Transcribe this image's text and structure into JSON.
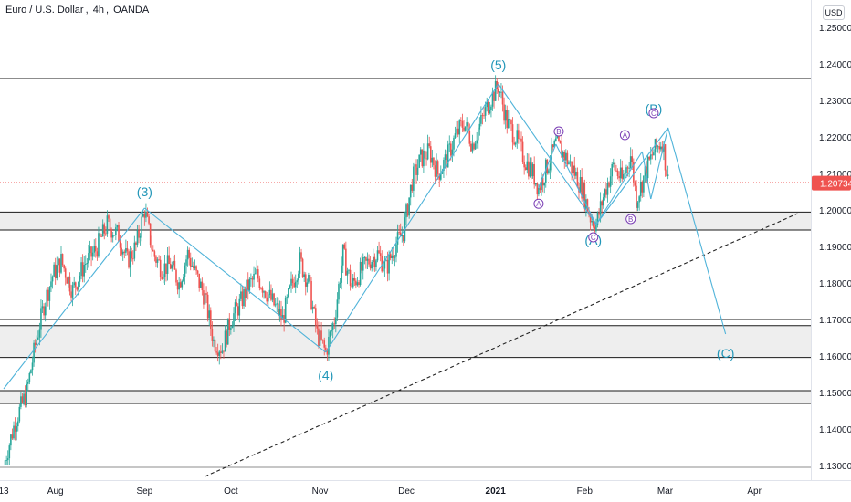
{
  "header": {
    "symbol": "Euro / U.S. Dollar",
    "interval": "4h",
    "exchange": "OANDA",
    "currency": "USD"
  },
  "colors": {
    "up": "#26a69a",
    "down": "#ef5350",
    "wave": "#4fb3d9",
    "label": "#2196b8",
    "zone": "#e0e0e0",
    "circle_label": "#7b3fb5",
    "price_tag": "#ef5350"
  },
  "chart_data": {
    "type": "candlestick",
    "y_axis": {
      "min": 1.125,
      "max": 1.255,
      "ticks": [
        "1.13000",
        "1.14000",
        "1.15000",
        "1.16000",
        "1.17000",
        "1.18000",
        "1.19000",
        "1.20000",
        "1.21000",
        "1.22000",
        "1.23000",
        "1.24000",
        "1.25000"
      ]
    },
    "x_axis": {
      "ticks": [
        {
          "label": "13",
          "pos": 0
        },
        {
          "label": "Aug",
          "pos": 18
        },
        {
          "label": "Sep",
          "pos": 49
        },
        {
          "label": "Oct",
          "pos": 79
        },
        {
          "label": "Nov",
          "pos": 110
        },
        {
          "label": "Dec",
          "pos": 140
        },
        {
          "label": "2021",
          "pos": 171
        },
        {
          "label": "Feb",
          "pos": 202
        },
        {
          "label": "Mar",
          "pos": 230
        },
        {
          "label": "Apr",
          "pos": 261
        }
      ]
    },
    "last_price": "1.20734",
    "price_path": [
      [
        0,
        1.13
      ],
      [
        4,
        1.142
      ],
      [
        8,
        1.15
      ],
      [
        11,
        1.163
      ],
      [
        14,
        1.174
      ],
      [
        17,
        1.182
      ],
      [
        20,
        1.186
      ],
      [
        24,
        1.178
      ],
      [
        28,
        1.185
      ],
      [
        32,
        1.189
      ],
      [
        36,
        1.196
      ],
      [
        40,
        1.193
      ],
      [
        43,
        1.186
      ],
      [
        46,
        1.19
      ],
      [
        49,
        1.2
      ],
      [
        52,
        1.188
      ],
      [
        55,
        1.184
      ],
      [
        58,
        1.185
      ],
      [
        61,
        1.18
      ],
      [
        64,
        1.188
      ],
      [
        67,
        1.182
      ],
      [
        70,
        1.176
      ],
      [
        73,
        1.164
      ],
      [
        76,
        1.162
      ],
      [
        79,
        1.17
      ],
      [
        82,
        1.174
      ],
      [
        85,
        1.179
      ],
      [
        88,
        1.182
      ],
      [
        91,
        1.178
      ],
      [
        94,
        1.174
      ],
      [
        97,
        1.17
      ],
      [
        100,
        1.179
      ],
      [
        103,
        1.186
      ],
      [
        106,
        1.18
      ],
      [
        109,
        1.166
      ],
      [
        112,
        1.161
      ],
      [
        115,
        1.17
      ],
      [
        118,
        1.188
      ],
      [
        121,
        1.179
      ],
      [
        124,
        1.183
      ],
      [
        127,
        1.186
      ],
      [
        130,
        1.188
      ],
      [
        133,
        1.184
      ],
      [
        136,
        1.19
      ],
      [
        139,
        1.194
      ],
      [
        142,
        1.208
      ],
      [
        145,
        1.214
      ],
      [
        148,
        1.216
      ],
      [
        151,
        1.21
      ],
      [
        154,
        1.214
      ],
      [
        157,
        1.22
      ],
      [
        160,
        1.224
      ],
      [
        163,
        1.218
      ],
      [
        166,
        1.224
      ],
      [
        169,
        1.23
      ],
      [
        172,
        1.234
      ],
      [
        175,
        1.224
      ],
      [
        178,
        1.22
      ],
      [
        181,
        1.214
      ],
      [
        184,
        1.21
      ],
      [
        186,
        1.206
      ],
      [
        189,
        1.212
      ],
      [
        192,
        1.218
      ],
      [
        195,
        1.215
      ],
      [
        198,
        1.211
      ],
      [
        201,
        1.206
      ],
      [
        204,
        1.198
      ],
      [
        206,
        1.196
      ],
      [
        209,
        1.205
      ],
      [
        212,
        1.212
      ],
      [
        215,
        1.208
      ],
      [
        218,
        1.215
      ],
      [
        220,
        1.203
      ],
      [
        223,
        1.21
      ],
      [
        226,
        1.216
      ],
      [
        229,
        1.219
      ],
      [
        231,
        1.208
      ]
    ],
    "horizontal_lines": [
      1.2359,
      1.1994,
      1.1945,
      1.17,
      1.1683,
      1.1596,
      1.1505,
      1.147,
      1.1295
    ],
    "dotted_level": 1.2075,
    "zones": [
      [
        1.1945,
        1.1994
      ],
      [
        1.1596,
        1.1683
      ],
      [
        1.147,
        1.1505
      ]
    ],
    "wave_lines": [
      [
        [
          0,
          1.151
        ],
        [
          49,
          1.2005
        ]
      ],
      [
        [
          49,
          1.2005
        ],
        [
          112,
          1.161
        ]
      ],
      [
        [
          112,
          1.161
        ],
        [
          172,
          1.2345
        ]
      ],
      [
        [
          172,
          1.2345
        ],
        [
          206,
          1.196
        ]
      ],
      [
        [
          206,
          1.196
        ],
        [
          231,
          1.2225
        ]
      ],
      [
        [
          231,
          1.2225
        ],
        [
          251,
          1.166
        ]
      ],
      [
        [
          186,
          1.206
        ],
        [
          192,
          1.218
        ]
      ],
      [
        [
          192,
          1.218
        ],
        [
          206,
          1.196
        ]
      ],
      [
        [
          206,
          1.196
        ],
        [
          222,
          1.216
        ]
      ],
      [
        [
          222,
          1.216
        ],
        [
          225,
          1.203
        ]
      ],
      [
        [
          225,
          1.203
        ],
        [
          231,
          1.2225
        ]
      ]
    ],
    "trendline": [
      [
        70,
        1.127
      ],
      [
        276,
        1.199
      ]
    ],
    "wave_labels": [
      {
        "text": "(3)",
        "x": 49,
        "y": 1.2038
      },
      {
        "text": "(4)",
        "x": 112,
        "y": 1.1535
      },
      {
        "text": "(5)",
        "x": 172,
        "y": 1.2385
      },
      {
        "text": "(A)",
        "x": 205,
        "y": 1.1905
      },
      {
        "text": "(B)",
        "x": 226,
        "y": 1.2265
      },
      {
        "text": "(C)",
        "x": 251,
        "y": 1.1595
      }
    ],
    "circle_labels": [
      {
        "text": "A",
        "x": 186,
        "y": 1.2017
      },
      {
        "text": "B",
        "x": 193,
        "y": 1.2215
      },
      {
        "text": "C",
        "x": 205,
        "y": 1.1925
      },
      {
        "text": "A",
        "x": 216,
        "y": 1.2205
      },
      {
        "text": "B",
        "x": 218,
        "y": 1.1975
      },
      {
        "text": "C",
        "x": 226,
        "y": 1.2265
      }
    ]
  }
}
